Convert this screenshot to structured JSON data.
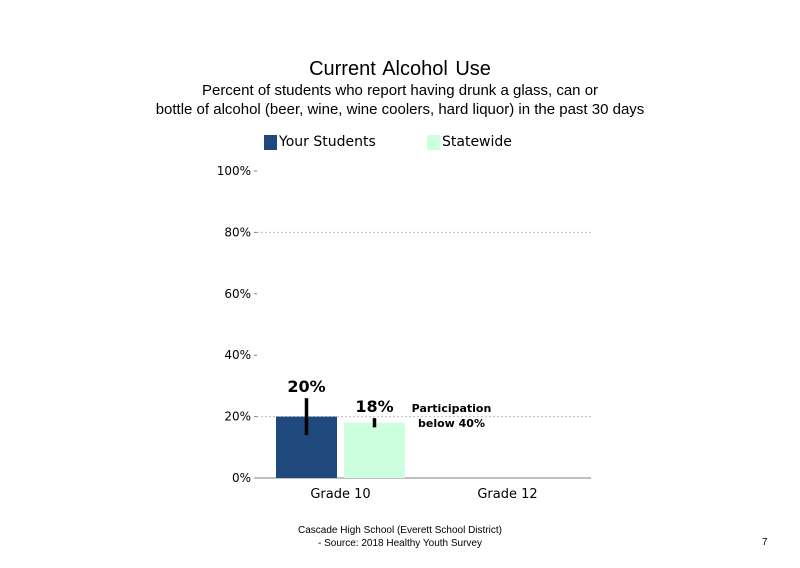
{
  "header": {
    "title": "Current  Alcohol Use",
    "subtitle_line1": "Percent of students who report having drunk a glass, can or",
    "subtitle_line2": "bottle  of alcohol (beer, wine, wine coolers, hard liquor)  in the past 30 days"
  },
  "legend": {
    "your_students": "Your Students",
    "statewide": "Statewide"
  },
  "colors": {
    "your_students": "#1f497d",
    "statewide": "#ccffdd",
    "error_bar": "#000000",
    "gridline": "#bfbfbf"
  },
  "chart_data": {
    "type": "bar",
    "title": "Current  Alcohol Use",
    "categories": [
      "Grade 10",
      "Grade 12"
    ],
    "series": [
      {
        "name": "Your Students",
        "values": [
          20,
          null
        ],
        "error": [
          [
            14,
            26
          ],
          null
        ],
        "labels": [
          "20%",
          ""
        ]
      },
      {
        "name": "Statewide",
        "values": [
          18,
          null
        ],
        "error": [
          [
            16.5,
            19.5
          ],
          null
        ],
        "labels": [
          "18%",
          ""
        ]
      }
    ],
    "ylim": [
      0,
      100
    ],
    "yticks": [
      0,
      20,
      40,
      60,
      80,
      100
    ],
    "ytick_labels": [
      "0%",
      "20%",
      "40%",
      "60%",
      "80%",
      "100%"
    ],
    "gridlines_at": [
      20,
      80
    ],
    "annotation": {
      "category": "Grade 12",
      "line1": "Participation",
      "line2": "below 40%"
    }
  },
  "footer": {
    "line1": "Cascade High School (Everett School District)",
    "line2": "- Source: 2018 Healthy  Youth Survey",
    "page_number": "7"
  }
}
